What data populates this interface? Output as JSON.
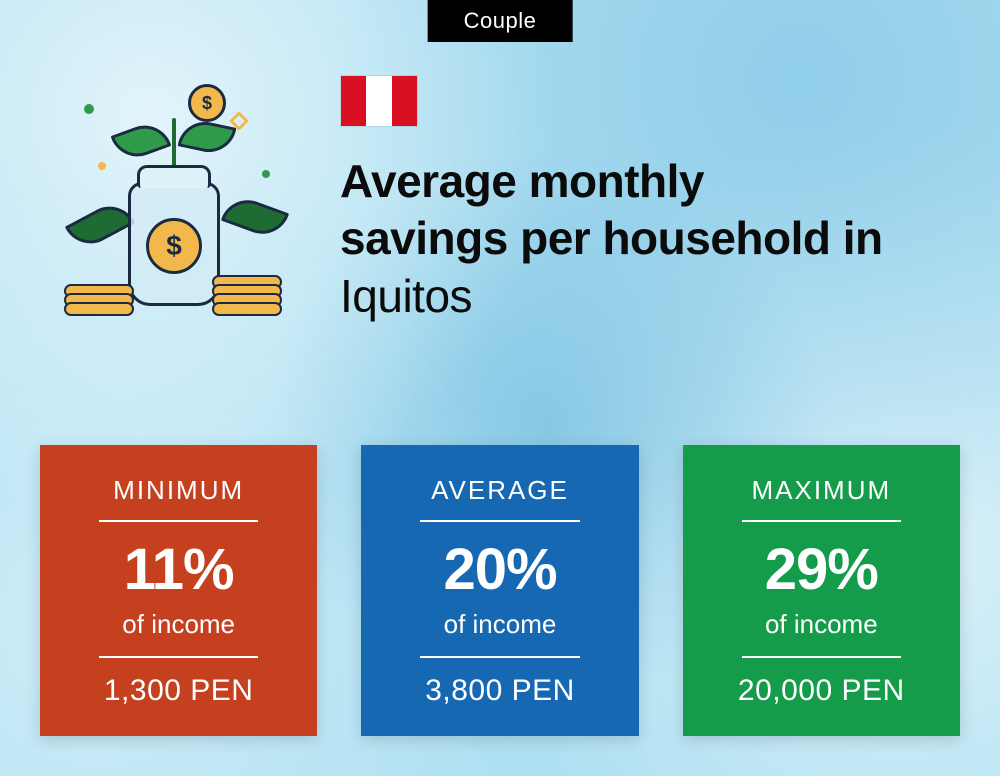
{
  "badge": {
    "label": "Couple",
    "bg": "#000000",
    "fg": "#ffffff"
  },
  "flag": {
    "left": "#d91023",
    "middle": "#ffffff",
    "right": "#d91023"
  },
  "headline": {
    "line1": "Average monthly",
    "line2": "savings per household in",
    "city": "Iquitos",
    "color": "#0b0b0b",
    "fontsize_pt": 34
  },
  "background": {
    "base": "#aee0f2",
    "accent1": "#7fc3e0",
    "accent2": "#ffffff"
  },
  "illustration": {
    "jar_fill": "#dceef5",
    "jar_border": "#1a2a40",
    "coin_fill": "#f2b84b",
    "coin_inner": "#e79a1e",
    "coin_symbol": "$",
    "leaf_fill": "#2e9a4a",
    "leaf_dark": "#1e6b33",
    "sparkle": "#2e9a4a",
    "sparkle2": "#f2b84b"
  },
  "cards": [
    {
      "label": "MINIMUM",
      "pct": "11%",
      "sub": "of income",
      "amount": "1,300 PEN",
      "bg": "#c5401f"
    },
    {
      "label": "AVERAGE",
      "pct": "20%",
      "sub": "of income",
      "amount": "3,800 PEN",
      "bg": "#1668b3"
    },
    {
      "label": "MAXIMUM",
      "pct": "29%",
      "sub": "of income",
      "amount": "20,000 PEN",
      "bg": "#149c4b"
    }
  ],
  "card_style": {
    "label_fontsize_pt": 20,
    "pct_fontsize_pt": 44,
    "sub_fontsize_pt": 20,
    "amount_fontsize_pt": 23,
    "text_color": "#ffffff",
    "rule_color": "#ffffff"
  }
}
